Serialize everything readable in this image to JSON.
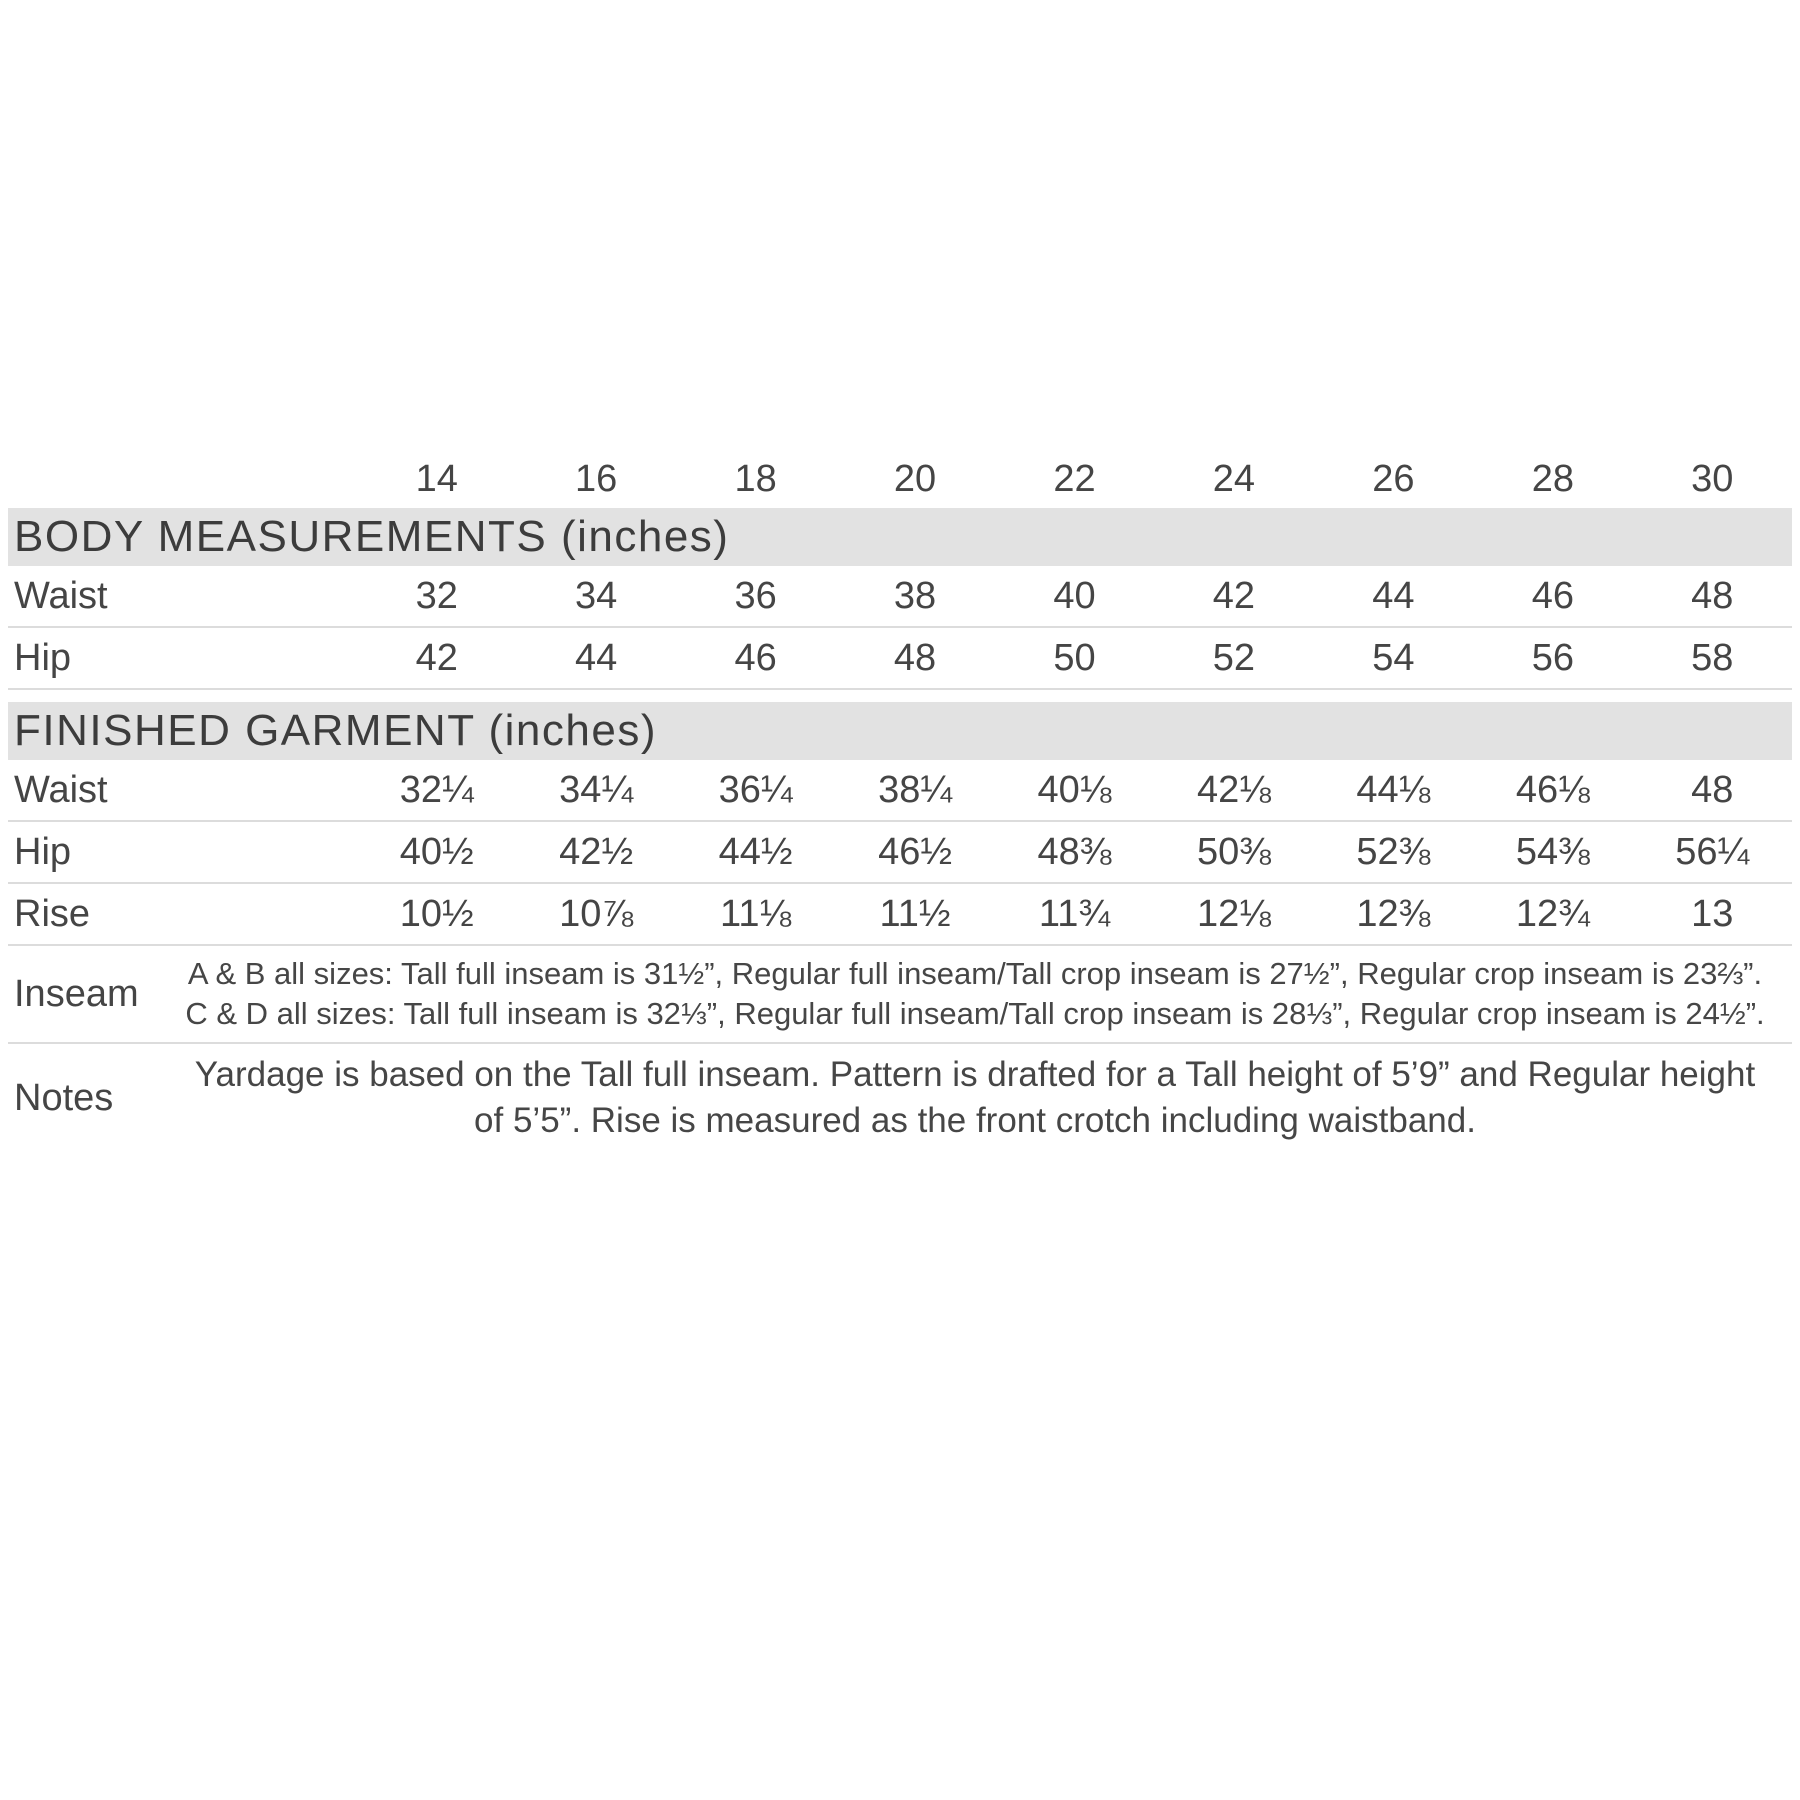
{
  "colors": {
    "section_bar": "#e2e2e2",
    "separator": "#dcdcdc",
    "text": "#454545"
  },
  "table": {
    "sizes": [
      "14",
      "16",
      "18",
      "20",
      "22",
      "24",
      "26",
      "28",
      "30"
    ],
    "sections": [
      {
        "title": "BODY MEASUREMENTS (inches)",
        "rows": [
          {
            "label": "Waist",
            "values": [
              "32",
              "34",
              "36",
              "38",
              "40",
              "42",
              "44",
              "46",
              "48"
            ]
          },
          {
            "label": "Hip",
            "values": [
              "42",
              "44",
              "46",
              "48",
              "50",
              "52",
              "54",
              "56",
              "58"
            ]
          }
        ]
      },
      {
        "title": "FINISHED GARMENT (inches)",
        "rows": [
          {
            "label": "Waist",
            "values": [
              "32¼",
              "34¼",
              "36¼",
              "38¼",
              "40⅛",
              "42⅛",
              "44⅛",
              "46⅛",
              "48"
            ]
          },
          {
            "label": "Hip",
            "values": [
              "40½",
              "42½",
              "44½",
              "46½",
              "48⅜",
              "50⅜",
              "52⅜",
              "54⅜",
              "56¼"
            ]
          },
          {
            "label": "Rise",
            "values": [
              "10½",
              "10⅞",
              "11⅛",
              "11½",
              "11¾",
              "12⅛",
              "12⅜",
              "12¾",
              "13"
            ]
          }
        ]
      }
    ],
    "inseam": {
      "label": "Inseam",
      "lines": [
        "A & B all sizes: Tall full inseam is 31½”, Regular full inseam/Tall crop inseam is 27½”, Regular crop inseam is 23⅔”.",
        "C & D all sizes: Tall full inseam is 32⅓”, Regular full inseam/Tall crop inseam is 28⅓”, Regular crop inseam is 24½”."
      ]
    },
    "notes": {
      "label": "Notes",
      "lines": [
        "Yardage is based on the Tall full inseam. Pattern is drafted for a Tall height of 5’9” and Regular height",
        "of 5’5”. Rise is measured as the front crotch including waistband."
      ]
    }
  }
}
